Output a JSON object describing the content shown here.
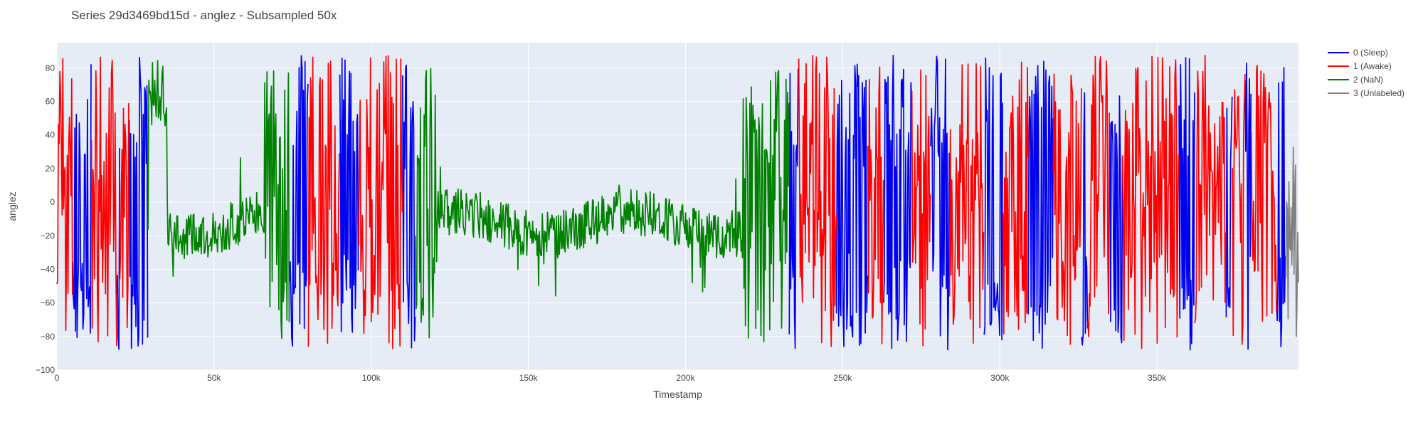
{
  "chart_data": {
    "type": "line",
    "title": "Series 29d3469bd15d - anglez - Subsampled 50x",
    "xlabel": "Timestamp",
    "ylabel": "anglez",
    "xlim": [
      0,
      395000
    ],
    "ylim": [
      -100,
      95
    ],
    "x_ticks": [
      0,
      50000,
      100000,
      150000,
      200000,
      250000,
      300000,
      350000
    ],
    "x_tick_labels": [
      "0",
      "50k",
      "100k",
      "150k",
      "200k",
      "250k",
      "300k",
      "350k"
    ],
    "y_ticks": [
      -100,
      -80,
      -60,
      -40,
      -20,
      0,
      20,
      40,
      60,
      80
    ],
    "y_tick_labels": [
      "−100",
      "−80",
      "−60",
      "−40",
      "−20",
      "0",
      "20",
      "40",
      "60",
      "80"
    ],
    "grid": true,
    "legend_position": "top-right",
    "series": [
      {
        "name": "0 (Sleep)",
        "color": "#0000ee",
        "segments": [
          [
            5000,
            11000
          ],
          [
            19000,
            20000
          ],
          [
            23000,
            29000
          ],
          [
            74000,
            80000
          ],
          [
            90000,
            96000
          ],
          [
            110000,
            114000
          ],
          [
            233000,
            236000
          ],
          [
            248000,
            258000
          ],
          [
            263000,
            272000
          ],
          [
            278000,
            284000
          ],
          [
            295000,
            301000
          ],
          [
            309000,
            317000
          ],
          [
            326000,
            328000
          ],
          [
            335000,
            339000
          ],
          [
            357000,
            362000
          ],
          [
            372000,
            374000
          ],
          [
            378000,
            380000
          ],
          [
            388000,
            391000
          ]
        ]
      },
      {
        "name": "1 (Awake)",
        "color": "#ff0000",
        "segments": [
          [
            0,
            5000
          ],
          [
            11000,
            19000
          ],
          [
            20000,
            23000
          ],
          [
            80000,
            90000
          ],
          [
            96000,
            110000
          ],
          [
            236000,
            248000
          ],
          [
            258000,
            263000
          ],
          [
            272000,
            278000
          ],
          [
            284000,
            295000
          ],
          [
            301000,
            309000
          ],
          [
            317000,
            326000
          ],
          [
            328000,
            335000
          ],
          [
            339000,
            357000
          ],
          [
            362000,
            372000
          ],
          [
            374000,
            378000
          ],
          [
            380000,
            388000
          ]
        ]
      },
      {
        "name": "2 (NaN)",
        "color": "#008000",
        "segments": [
          [
            29000,
            74000
          ],
          [
            114000,
            233000
          ]
        ]
      },
      {
        "name": "3 (Unlabeled)",
        "color": "#808080",
        "segments": [
          [
            391000,
            395000
          ]
        ]
      }
    ]
  }
}
